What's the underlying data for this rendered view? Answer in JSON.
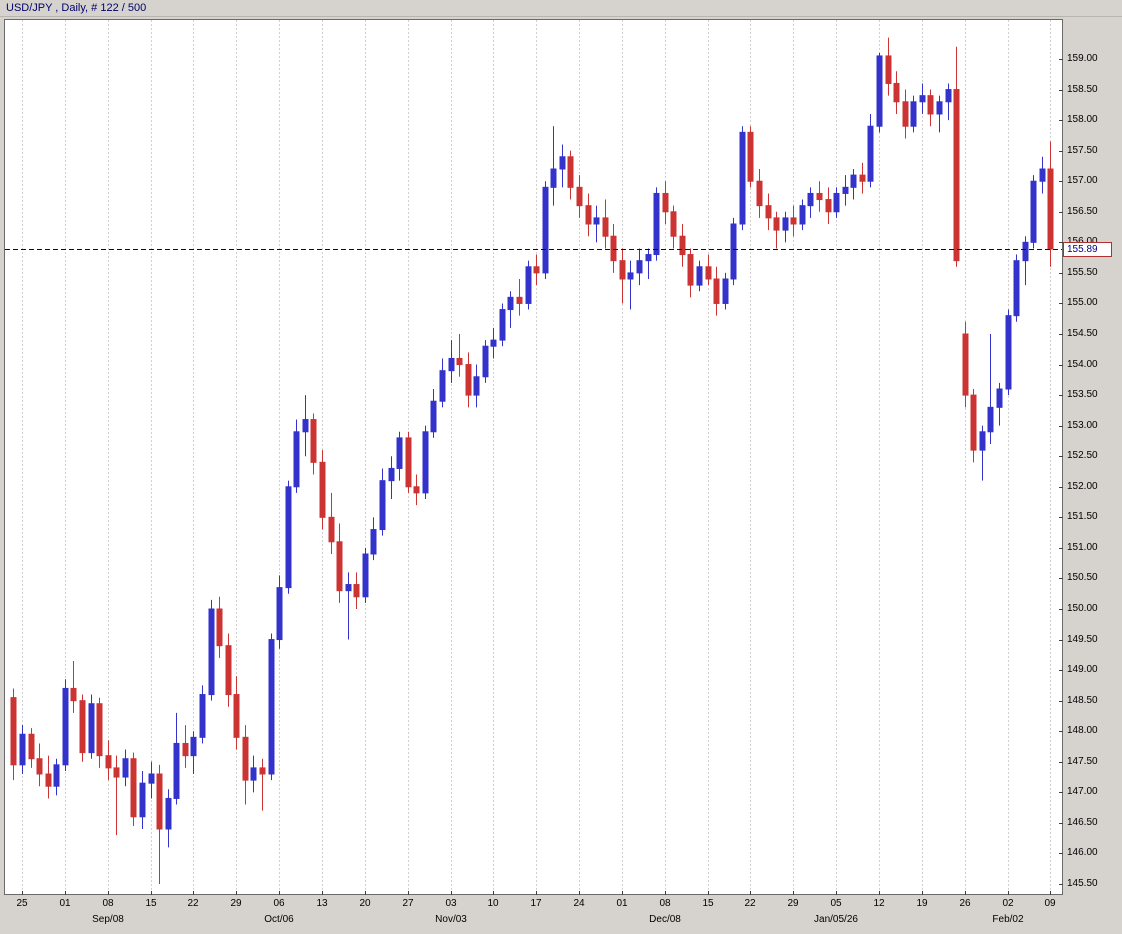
{
  "window": {
    "title": "USD/JPY , Daily, # 122 / 500"
  },
  "chart_data": {
    "type": "candlestick",
    "symbol": "USD/JPY",
    "timeframe": "Daily",
    "counter": "# 122 / 500",
    "price_line": {
      "value": 155.89,
      "label": "155.89"
    },
    "y_axis": {
      "tick_step": 0.5,
      "ticks": [
        "159.00",
        "158.50",
        "158.00",
        "157.50",
        "157.00",
        "156.50",
        "156.00",
        "155.50",
        "155.00",
        "154.50",
        "154.00",
        "153.50",
        "153.00",
        "152.50",
        "152.00",
        "151.50",
        "151.00",
        "150.50",
        "150.00",
        "149.50",
        "149.00",
        "148.50",
        "148.00",
        "147.50",
        "147.00",
        "146.50",
        "146.00",
        "145.50"
      ]
    },
    "x_axis": {
      "tick_start_index": 2,
      "tick_step": 5,
      "tick_labels": [
        "25",
        "01",
        "08",
        "15",
        "22",
        "29",
        "06",
        "13",
        "20",
        "27",
        "03",
        "10",
        "17",
        "24",
        "01",
        "08",
        "15",
        "22",
        "29",
        "05",
        "12",
        "19",
        "26",
        "02",
        "09"
      ],
      "month_labels": [
        {
          "index": 12,
          "label": "Sep/08"
        },
        {
          "index": 32,
          "label": "Oct/06"
        },
        {
          "index": 52,
          "label": "Nov/03"
        },
        {
          "index": 77,
          "label": "Dec/08"
        },
        {
          "index": 97,
          "label": "Jan/05/26"
        },
        {
          "index": 117,
          "label": "Feb/02"
        }
      ]
    },
    "colors": {
      "up": "#3333cc",
      "down": "#cc3333",
      "grid": "#d0d0d0",
      "price_line": "#000080",
      "plot_bg": "#ffffff",
      "frame": "#6a6a6a",
      "panel": "#d6d3ce",
      "axis_tick": "#404040",
      "price_tag_border": "#b03030",
      "price_tag_text": "#000080"
    },
    "candles": [
      [
        148.55,
        148.7,
        147.2,
        147.45
      ],
      [
        147.45,
        148.1,
        147.3,
        147.95
      ],
      [
        147.95,
        148.05,
        147.4,
        147.55
      ],
      [
        147.55,
        147.8,
        147.1,
        147.3
      ],
      [
        147.3,
        147.6,
        146.9,
        147.1
      ],
      [
        147.1,
        147.55,
        146.95,
        147.45
      ],
      [
        147.45,
        148.85,
        147.35,
        148.7
      ],
      [
        148.7,
        149.15,
        148.3,
        148.5
      ],
      [
        148.5,
        148.6,
        147.5,
        147.65
      ],
      [
        147.65,
        148.6,
        147.55,
        148.45
      ],
      [
        148.45,
        148.55,
        147.4,
        147.6
      ],
      [
        147.6,
        147.85,
        147.2,
        147.4
      ],
      [
        147.4,
        147.6,
        146.3,
        147.25
      ],
      [
        147.25,
        147.7,
        147.1,
        147.55
      ],
      [
        147.55,
        147.65,
        146.45,
        146.6
      ],
      [
        146.6,
        147.35,
        146.4,
        147.15
      ],
      [
        147.15,
        147.5,
        146.9,
        147.3
      ],
      [
        147.3,
        147.45,
        145.5,
        146.4
      ],
      [
        146.4,
        147.05,
        146.1,
        146.9
      ],
      [
        146.9,
        148.3,
        146.8,
        147.8
      ],
      [
        147.8,
        148.1,
        147.4,
        147.6
      ],
      [
        147.6,
        148.0,
        147.3,
        147.9
      ],
      [
        147.9,
        148.75,
        147.8,
        148.6
      ],
      [
        148.6,
        150.15,
        148.5,
        150.0
      ],
      [
        150.0,
        150.2,
        149.2,
        149.4
      ],
      [
        149.4,
        149.6,
        148.4,
        148.6
      ],
      [
        148.6,
        148.9,
        147.7,
        147.9
      ],
      [
        147.9,
        148.1,
        146.8,
        147.2
      ],
      [
        147.2,
        147.6,
        147.0,
        147.4
      ],
      [
        147.4,
        147.55,
        146.7,
        147.3
      ],
      [
        147.3,
        149.6,
        147.2,
        149.5
      ],
      [
        149.5,
        150.55,
        149.35,
        150.35
      ],
      [
        150.35,
        152.1,
        150.25,
        152.0
      ],
      [
        152.0,
        153.1,
        151.9,
        152.9
      ],
      [
        152.9,
        153.5,
        152.5,
        153.1
      ],
      [
        153.1,
        153.2,
        152.2,
        152.4
      ],
      [
        152.4,
        152.6,
        151.3,
        151.5
      ],
      [
        151.5,
        151.9,
        150.9,
        151.1
      ],
      [
        151.1,
        151.4,
        150.1,
        150.3
      ],
      [
        150.3,
        150.6,
        149.5,
        150.4
      ],
      [
        150.4,
        150.6,
        150.0,
        150.2
      ],
      [
        150.2,
        151.0,
        150.1,
        150.9
      ],
      [
        150.9,
        151.5,
        150.8,
        151.3
      ],
      [
        151.3,
        152.3,
        151.2,
        152.1
      ],
      [
        152.1,
        152.5,
        151.8,
        152.3
      ],
      [
        152.3,
        152.9,
        152.1,
        152.8
      ],
      [
        152.8,
        152.9,
        151.9,
        152.0
      ],
      [
        152.0,
        152.2,
        151.7,
        151.9
      ],
      [
        151.9,
        153.0,
        151.8,
        152.9
      ],
      [
        152.9,
        153.6,
        152.8,
        153.4
      ],
      [
        153.4,
        154.1,
        153.3,
        153.9
      ],
      [
        153.9,
        154.4,
        153.7,
        154.1
      ],
      [
        154.1,
        154.5,
        153.8,
        154.0
      ],
      [
        154.0,
        154.2,
        153.3,
        153.5
      ],
      [
        153.5,
        154.0,
        153.3,
        153.8
      ],
      [
        153.8,
        154.4,
        153.7,
        154.3
      ],
      [
        154.3,
        154.6,
        154.1,
        154.4
      ],
      [
        154.4,
        155.0,
        154.3,
        154.9
      ],
      [
        154.9,
        155.2,
        154.6,
        155.1
      ],
      [
        155.1,
        155.4,
        154.8,
        155.0
      ],
      [
        155.0,
        155.7,
        154.9,
        155.6
      ],
      [
        155.6,
        155.8,
        155.3,
        155.5
      ],
      [
        155.5,
        157.0,
        155.4,
        156.9
      ],
      [
        156.9,
        157.9,
        156.6,
        157.2
      ],
      [
        157.2,
        157.6,
        156.9,
        157.4
      ],
      [
        157.4,
        157.5,
        156.7,
        156.9
      ],
      [
        156.9,
        157.1,
        156.4,
        156.6
      ],
      [
        156.6,
        156.8,
        156.1,
        156.3
      ],
      [
        156.3,
        156.6,
        156.0,
        156.4
      ],
      [
        156.4,
        156.7,
        155.9,
        156.1
      ],
      [
        156.1,
        156.3,
        155.5,
        155.7
      ],
      [
        155.7,
        155.9,
        155.0,
        155.4
      ],
      [
        155.4,
        155.7,
        154.9,
        155.5
      ],
      [
        155.5,
        155.9,
        155.3,
        155.7
      ],
      [
        155.7,
        155.9,
        155.4,
        155.8
      ],
      [
        155.8,
        156.9,
        155.7,
        156.8
      ],
      [
        156.8,
        157.0,
        156.3,
        156.5
      ],
      [
        156.5,
        156.6,
        155.9,
        156.1
      ],
      [
        156.1,
        156.3,
        155.6,
        155.8
      ],
      [
        155.8,
        155.9,
        155.1,
        155.3
      ],
      [
        155.3,
        155.7,
        155.2,
        155.6
      ],
      [
        155.6,
        155.8,
        155.3,
        155.4
      ],
      [
        155.4,
        155.6,
        154.8,
        155.0
      ],
      [
        155.0,
        155.5,
        154.9,
        155.4
      ],
      [
        155.4,
        156.4,
        155.3,
        156.3
      ],
      [
        156.3,
        157.9,
        156.2,
        157.8
      ],
      [
        157.8,
        157.9,
        156.9,
        157.0
      ],
      [
        157.0,
        157.2,
        156.4,
        156.6
      ],
      [
        156.6,
        156.8,
        156.2,
        156.4
      ],
      [
        156.4,
        156.5,
        155.9,
        156.2
      ],
      [
        156.2,
        156.5,
        156.0,
        156.4
      ],
      [
        156.4,
        156.6,
        156.1,
        156.3
      ],
      [
        156.3,
        156.7,
        156.2,
        156.6
      ],
      [
        156.6,
        156.9,
        156.4,
        156.8
      ],
      [
        156.8,
        157.0,
        156.5,
        156.7
      ],
      [
        156.7,
        156.9,
        156.3,
        156.5
      ],
      [
        156.5,
        156.9,
        156.4,
        156.8
      ],
      [
        156.8,
        157.1,
        156.6,
        156.9
      ],
      [
        156.9,
        157.2,
        156.7,
        157.1
      ],
      [
        157.1,
        157.3,
        156.8,
        157.0
      ],
      [
        157.0,
        158.1,
        156.9,
        157.9
      ],
      [
        157.9,
        159.1,
        157.8,
        159.05
      ],
      [
        159.05,
        159.35,
        158.4,
        158.6
      ],
      [
        158.6,
        158.8,
        158.1,
        158.3
      ],
      [
        158.3,
        158.5,
        157.7,
        157.9
      ],
      [
        157.9,
        158.4,
        157.8,
        158.3
      ],
      [
        158.3,
        158.6,
        158.1,
        158.4
      ],
      [
        158.4,
        158.5,
        157.9,
        158.1
      ],
      [
        158.1,
        158.4,
        157.8,
        158.3
      ],
      [
        158.3,
        158.6,
        158.0,
        158.5
      ],
      [
        158.5,
        159.2,
        155.6,
        155.7
      ],
      [
        154.5,
        154.7,
        153.3,
        153.5
      ],
      [
        153.5,
        153.6,
        152.4,
        152.6
      ],
      [
        152.6,
        153.0,
        152.1,
        152.9
      ],
      [
        152.9,
        154.5,
        152.7,
        153.3
      ],
      [
        153.3,
        153.7,
        153.0,
        153.6
      ],
      [
        153.6,
        154.9,
        153.5,
        154.8
      ],
      [
        154.8,
        155.8,
        154.7,
        155.7
      ],
      [
        155.7,
        156.1,
        155.3,
        156.0
      ],
      [
        156.0,
        157.1,
        155.9,
        157.0
      ],
      [
        157.0,
        157.4,
        156.8,
        157.2
      ],
      [
        157.2,
        157.65,
        155.6,
        155.89
      ]
    ]
  }
}
